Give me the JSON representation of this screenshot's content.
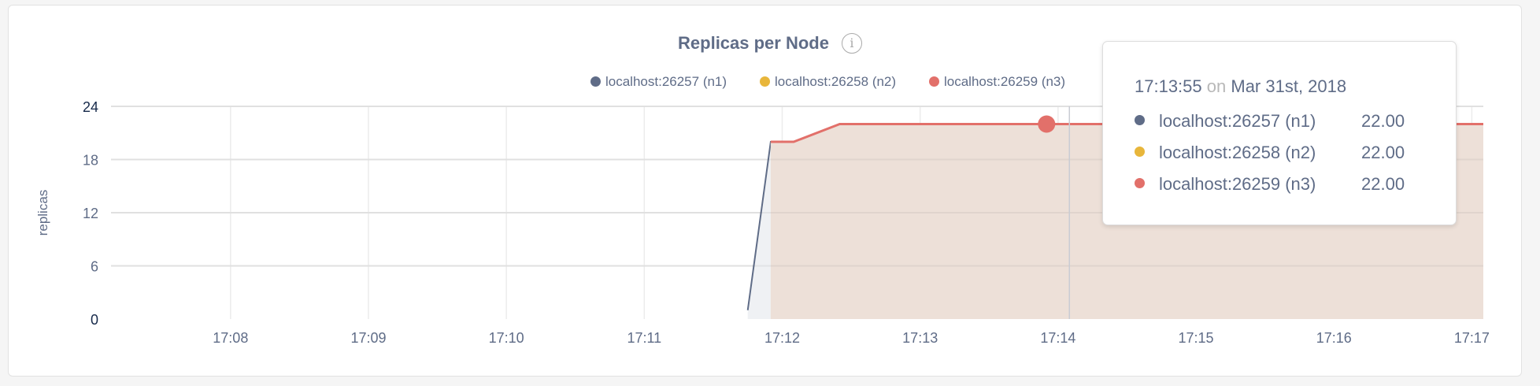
{
  "chart_data": {
    "type": "area",
    "title": "Replicas per Node",
    "title_icon": "info-icon",
    "ylabel": "replicas",
    "xlabel": "",
    "ylim": [
      0,
      24
    ],
    "yticks": [
      "0",
      "6",
      "12",
      "18",
      "24"
    ],
    "xlim": [
      "17:07:08",
      "17:17:05"
    ],
    "xticks": [
      "17:08",
      "17:09",
      "17:10",
      "17:11",
      "17:12",
      "17:13",
      "17:14",
      "17:15",
      "17:16",
      "17:17"
    ],
    "grid": true,
    "legend_position": "top-right",
    "series": [
      {
        "name": "localhost:26257 (n1)",
        "color": "#5f6c87",
        "fill": "#eef0f3",
        "x": [
          "17:11:45",
          "17:11:55",
          "17:12:05",
          "17:12:25",
          "17:17:05"
        ],
        "values": [
          1,
          20,
          20,
          22,
          22
        ]
      },
      {
        "name": "localhost:26258 (n2)",
        "color": "#e8b63b",
        "fill": "#f6ecd4",
        "x": [
          "17:11:55",
          "17:12:05",
          "17:12:25",
          "17:17:05"
        ],
        "values": [
          20,
          20,
          22,
          22
        ]
      },
      {
        "name": "localhost:26259 (n3)",
        "color": "#e2706a",
        "fill": "#ecdfd8",
        "x": [
          "17:11:55",
          "17:12:05",
          "17:12:25",
          "17:17:05"
        ],
        "values": [
          20,
          20,
          22,
          22
        ]
      }
    ],
    "hover": {
      "time": "17:13:55",
      "on": "on",
      "date": "Mar 31st, 2018",
      "rows": [
        {
          "name": "localhost:26257 (n1)",
          "value": "22.00",
          "color": "#5f6c87"
        },
        {
          "name": "localhost:26258 (n2)",
          "value": "22.00",
          "color": "#e8b63b"
        },
        {
          "name": "localhost:26259 (n3)",
          "value": "22.00",
          "color": "#e2706a"
        }
      ]
    }
  }
}
